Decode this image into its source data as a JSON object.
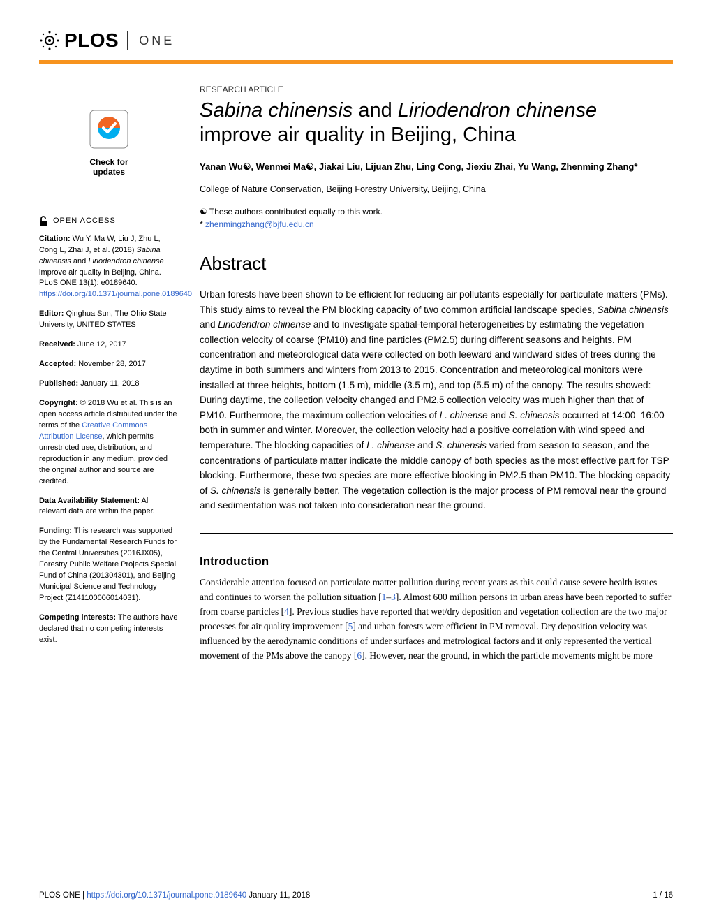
{
  "logo": {
    "brand": "PLOS",
    "journal": "ONE"
  },
  "colors": {
    "accent_bar": "#f7931e",
    "link": "#3366cc",
    "text": "#000000",
    "background": "#ffffff",
    "crossmark_orange": "#f16522",
    "crossmark_blue": "#00aeef"
  },
  "header": {
    "article_type": "RESEARCH ARTICLE",
    "title_italic1": "Sabina chinensis",
    "title_mid": " and ",
    "title_italic2": "Liriodendron chinense",
    "title_rest": " improve air quality in Beijing, China",
    "authors": "Yanan Wu☯, Wenmei Ma☯, Jiakai Liu, Lijuan Zhu, Ling Cong, Jiexiu Zhai, Yu Wang, Zhenming Zhang*",
    "affiliation": "College of Nature Conservation, Beijing Forestry University, Beijing, China",
    "equal_contrib": "☯ These authors contributed equally to this work.",
    "corr_prefix": "* ",
    "corr_email": "zhenmingzhang@bjfu.edu.cn"
  },
  "abstract": {
    "heading": "Abstract",
    "text": "Urban forests have been shown to be efficient for reducing air pollutants especially for particulate matters (PMs). This study aims to reveal the PM blocking capacity of two common artificial landscape species, Sabina chinensis and Liriodendron chinense and to investigate spatial-temporal heterogeneities by estimating the vegetation collection velocity of coarse (PM10) and fine particles (PM2.5) during different seasons and heights. PM concentration and meteorological data were collected on both leeward and windward sides of trees during the daytime in both summers and winters from 2013 to 2015. Concentration and meteorological monitors were installed at three heights, bottom (1.5 m), middle (3.5 m), and top (5.5 m) of the canopy. The results showed: During daytime, the collection velocity changed and PM2.5 collection velocity was much higher than that of PM10. Furthermore, the maximum collection velocities of L. chinense and S. chinensis occurred at 14:00–16:00 both in summer and winter. Moreover, the collection velocity had a positive correlation with wind speed and temperature. The blocking capacities of L. chinense and S. chinensis varied from season to season, and the concentrations of particulate matter indicate the middle canopy of both species as the most effective part for TSP blocking. Furthermore, these two species are more effective blocking in PM2.5 than PM10. The blocking capacity of S. chinensis is generally better. The vegetation collection is the major process of PM removal near the ground and sedimentation was not taken into consideration near the ground."
  },
  "introduction": {
    "heading": "Introduction",
    "text_parts": [
      "Considerable attention focused on particulate matter pollution during recent years as this could cause severe health issues and continues to worsen the pollution situation [",
      "1",
      "–",
      "3",
      "]. Almost 600 million persons in urban areas have been reported to suffer from coarse particles [",
      "4",
      "]. Previous studies have reported that wet/dry deposition and vegetation collection are the two major processes for air quality improvement [",
      "5",
      "] and urban forests were efficient in PM removal. Dry deposition velocity was influenced by the aerodynamic conditions of under surfaces and metrological factors and it only represented the vertical movement of the PMs above the canopy [",
      "6",
      "]. However, near the ground, in which the particle movements might be more"
    ]
  },
  "sidebar": {
    "check_updates": {
      "line1": "Check for",
      "line2": "updates"
    },
    "open_access": "OPEN ACCESS",
    "citation_label": "Citation:",
    "citation_text1": " Wu Y, Ma W, Liu J, Zhu L, Cong L, Zhai J, et al. (2018) ",
    "citation_italic1": "Sabina chinensis",
    "citation_mid": " and ",
    "citation_italic2": "Liriodendron chinense",
    "citation_text2": " improve air quality in Beijing, China. PLoS ONE 13(1): e0189640. ",
    "citation_doi": "https://doi.org/10.1371/journal.pone.0189640",
    "editor_label": "Editor:",
    "editor_text": " Qinghua Sun, The Ohio State University, UNITED STATES",
    "received_label": "Received:",
    "received_text": " June 12, 2017",
    "accepted_label": "Accepted:",
    "accepted_text": " November 28, 2017",
    "published_label": "Published:",
    "published_text": " January 11, 2018",
    "copyright_label": "Copyright:",
    "copyright_text1": " © 2018 Wu et al. This is an open access article distributed under the terms of the ",
    "copyright_link": "Creative Commons Attribution License",
    "copyright_text2": ", which permits unrestricted use, distribution, and reproduction in any medium, provided the original author and source are credited.",
    "data_label": "Data Availability Statement:",
    "data_text": " All relevant data are within the paper.",
    "funding_label": "Funding:",
    "funding_text": " This research was supported by the Fundamental Research Funds for the Central Universities (2016JX05), Forestry Public Welfare Projects Special Fund of China (201304301), and Beijing Municipal Science and Technology Project (Z141100006014031).",
    "competing_label": "Competing interests:",
    "competing_text": " The authors have declared that no competing interests exist."
  },
  "footer": {
    "journal": "PLOS ONE | ",
    "doi": "https://doi.org/10.1371/journal.pone.0189640",
    "date": "    January 11, 2018",
    "page": "1 / 16"
  }
}
